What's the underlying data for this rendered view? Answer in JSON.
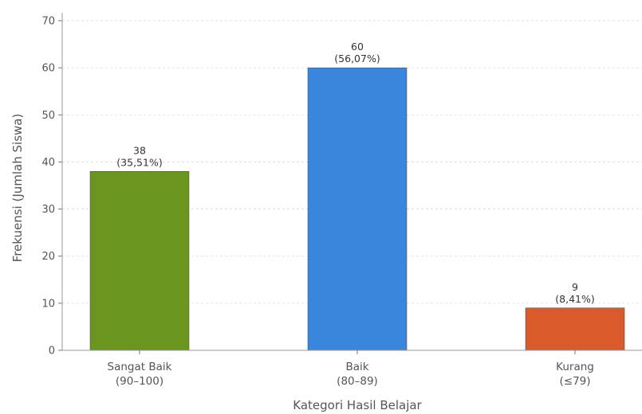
{
  "chart_data": {
    "type": "bar",
    "title": "",
    "xlabel": "Kategori Hasil Belajar",
    "ylabel": "Frekuensi (Jumlah Siswa)",
    "ylim": [
      0,
      70
    ],
    "yticks": [
      0,
      10,
      20,
      30,
      40,
      50,
      60,
      70
    ],
    "grid": "horizontal-dashed",
    "categories": [
      {
        "line1": "Sangat Baik",
        "line2": "(90–100)"
      },
      {
        "line1": "Baik",
        "line2": "(80–89)"
      },
      {
        "line1": "Kurang",
        "line2": "(≤79)"
      }
    ],
    "values": [
      38,
      60,
      9
    ],
    "value_labels": [
      "38",
      "60",
      "9"
    ],
    "percent_labels": [
      "(35,51%)",
      "(56,07%)",
      "(8,41%)"
    ],
    "colors": [
      "#6a951f",
      "#3a86dc",
      "#d95a2b"
    ]
  }
}
